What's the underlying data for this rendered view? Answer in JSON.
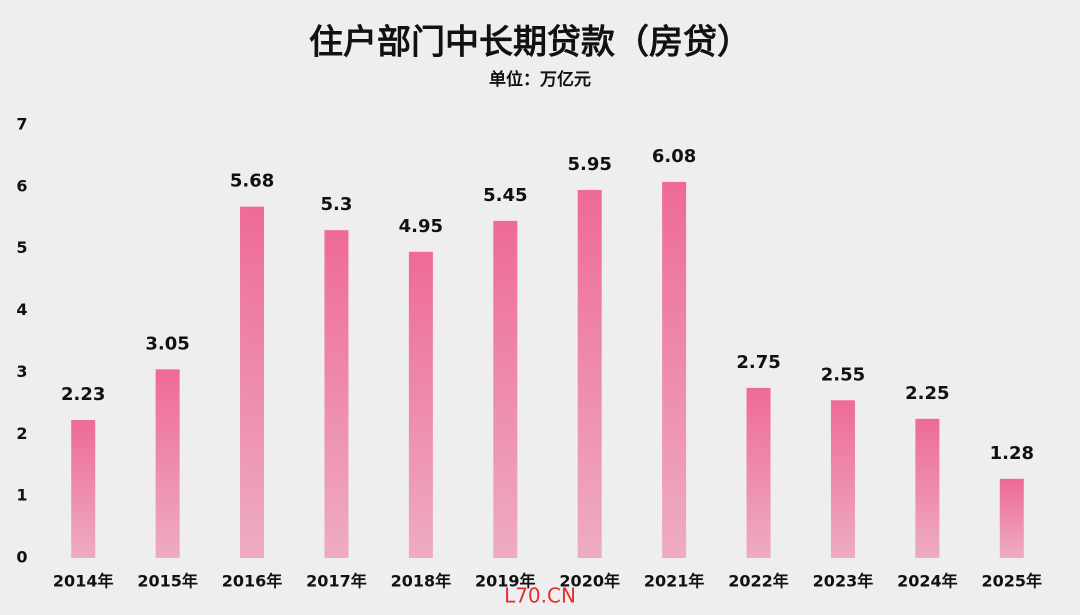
{
  "chart_data": {
    "type": "bar",
    "title": "住户部门中长期贷款（房贷）",
    "subtitle": "单位：万亿元",
    "watermark": "L70.CN",
    "categories": [
      "2014年",
      "2015年",
      "2016年",
      "2017年",
      "2018年",
      "2019年",
      "2020年",
      "2021年",
      "2022年",
      "2023年",
      "2024年",
      "2025年"
    ],
    "values": [
      2.23,
      3.05,
      5.68,
      5.3,
      4.95,
      5.45,
      5.95,
      6.08,
      2.75,
      2.55,
      2.25,
      1.28
    ],
    "color": "#ee6a97",
    "ylim": [
      0,
      7
    ],
    "yticks": [
      0,
      1,
      2,
      3,
      4,
      5,
      6,
      7
    ],
    "grid": false
  }
}
